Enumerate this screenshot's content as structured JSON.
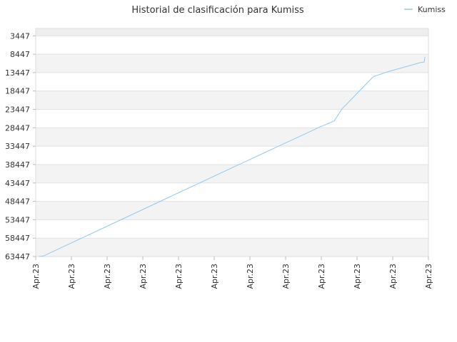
{
  "chart_data": {
    "type": "line",
    "title": "Historial de clasificación para Kumiss",
    "legend": {
      "position": "top-right",
      "entries": [
        "Kumiss"
      ]
    },
    "y_axis": {
      "reversed": true,
      "range": [
        1447,
        63447
      ],
      "ticks": [
        3447,
        8447,
        13447,
        18447,
        23447,
        28447,
        33447,
        38447,
        43447,
        48447,
        53447,
        58447,
        63447
      ]
    },
    "x_axis": {
      "tick_labels": [
        "Apr.23",
        "Apr.23",
        "Apr.23",
        "Apr.23",
        "Apr.23",
        "Apr.23",
        "Apr.23",
        "Apr.23",
        "Apr.23",
        "Apr.23",
        "Apr.23",
        "Apr.23"
      ]
    },
    "grid": true,
    "series": [
      {
        "name": "Kumiss",
        "color": "#90c8f0",
        "points": [
          [
            0.008,
            63447
          ],
          [
            0.02,
            63300
          ],
          [
            0.1,
            59300
          ],
          [
            0.3,
            49300
          ],
          [
            0.5,
            39300
          ],
          [
            0.7,
            29400
          ],
          [
            0.72,
            28400
          ],
          [
            0.76,
            26600
          ],
          [
            0.78,
            23300
          ],
          [
            0.82,
            18900
          ],
          [
            0.86,
            14500
          ],
          [
            0.9,
            13100
          ],
          [
            0.94,
            11900
          ],
          [
            0.98,
            10700
          ],
          [
            0.989,
            10600
          ],
          [
            0.991,
            9200
          ]
        ]
      }
    ]
  }
}
